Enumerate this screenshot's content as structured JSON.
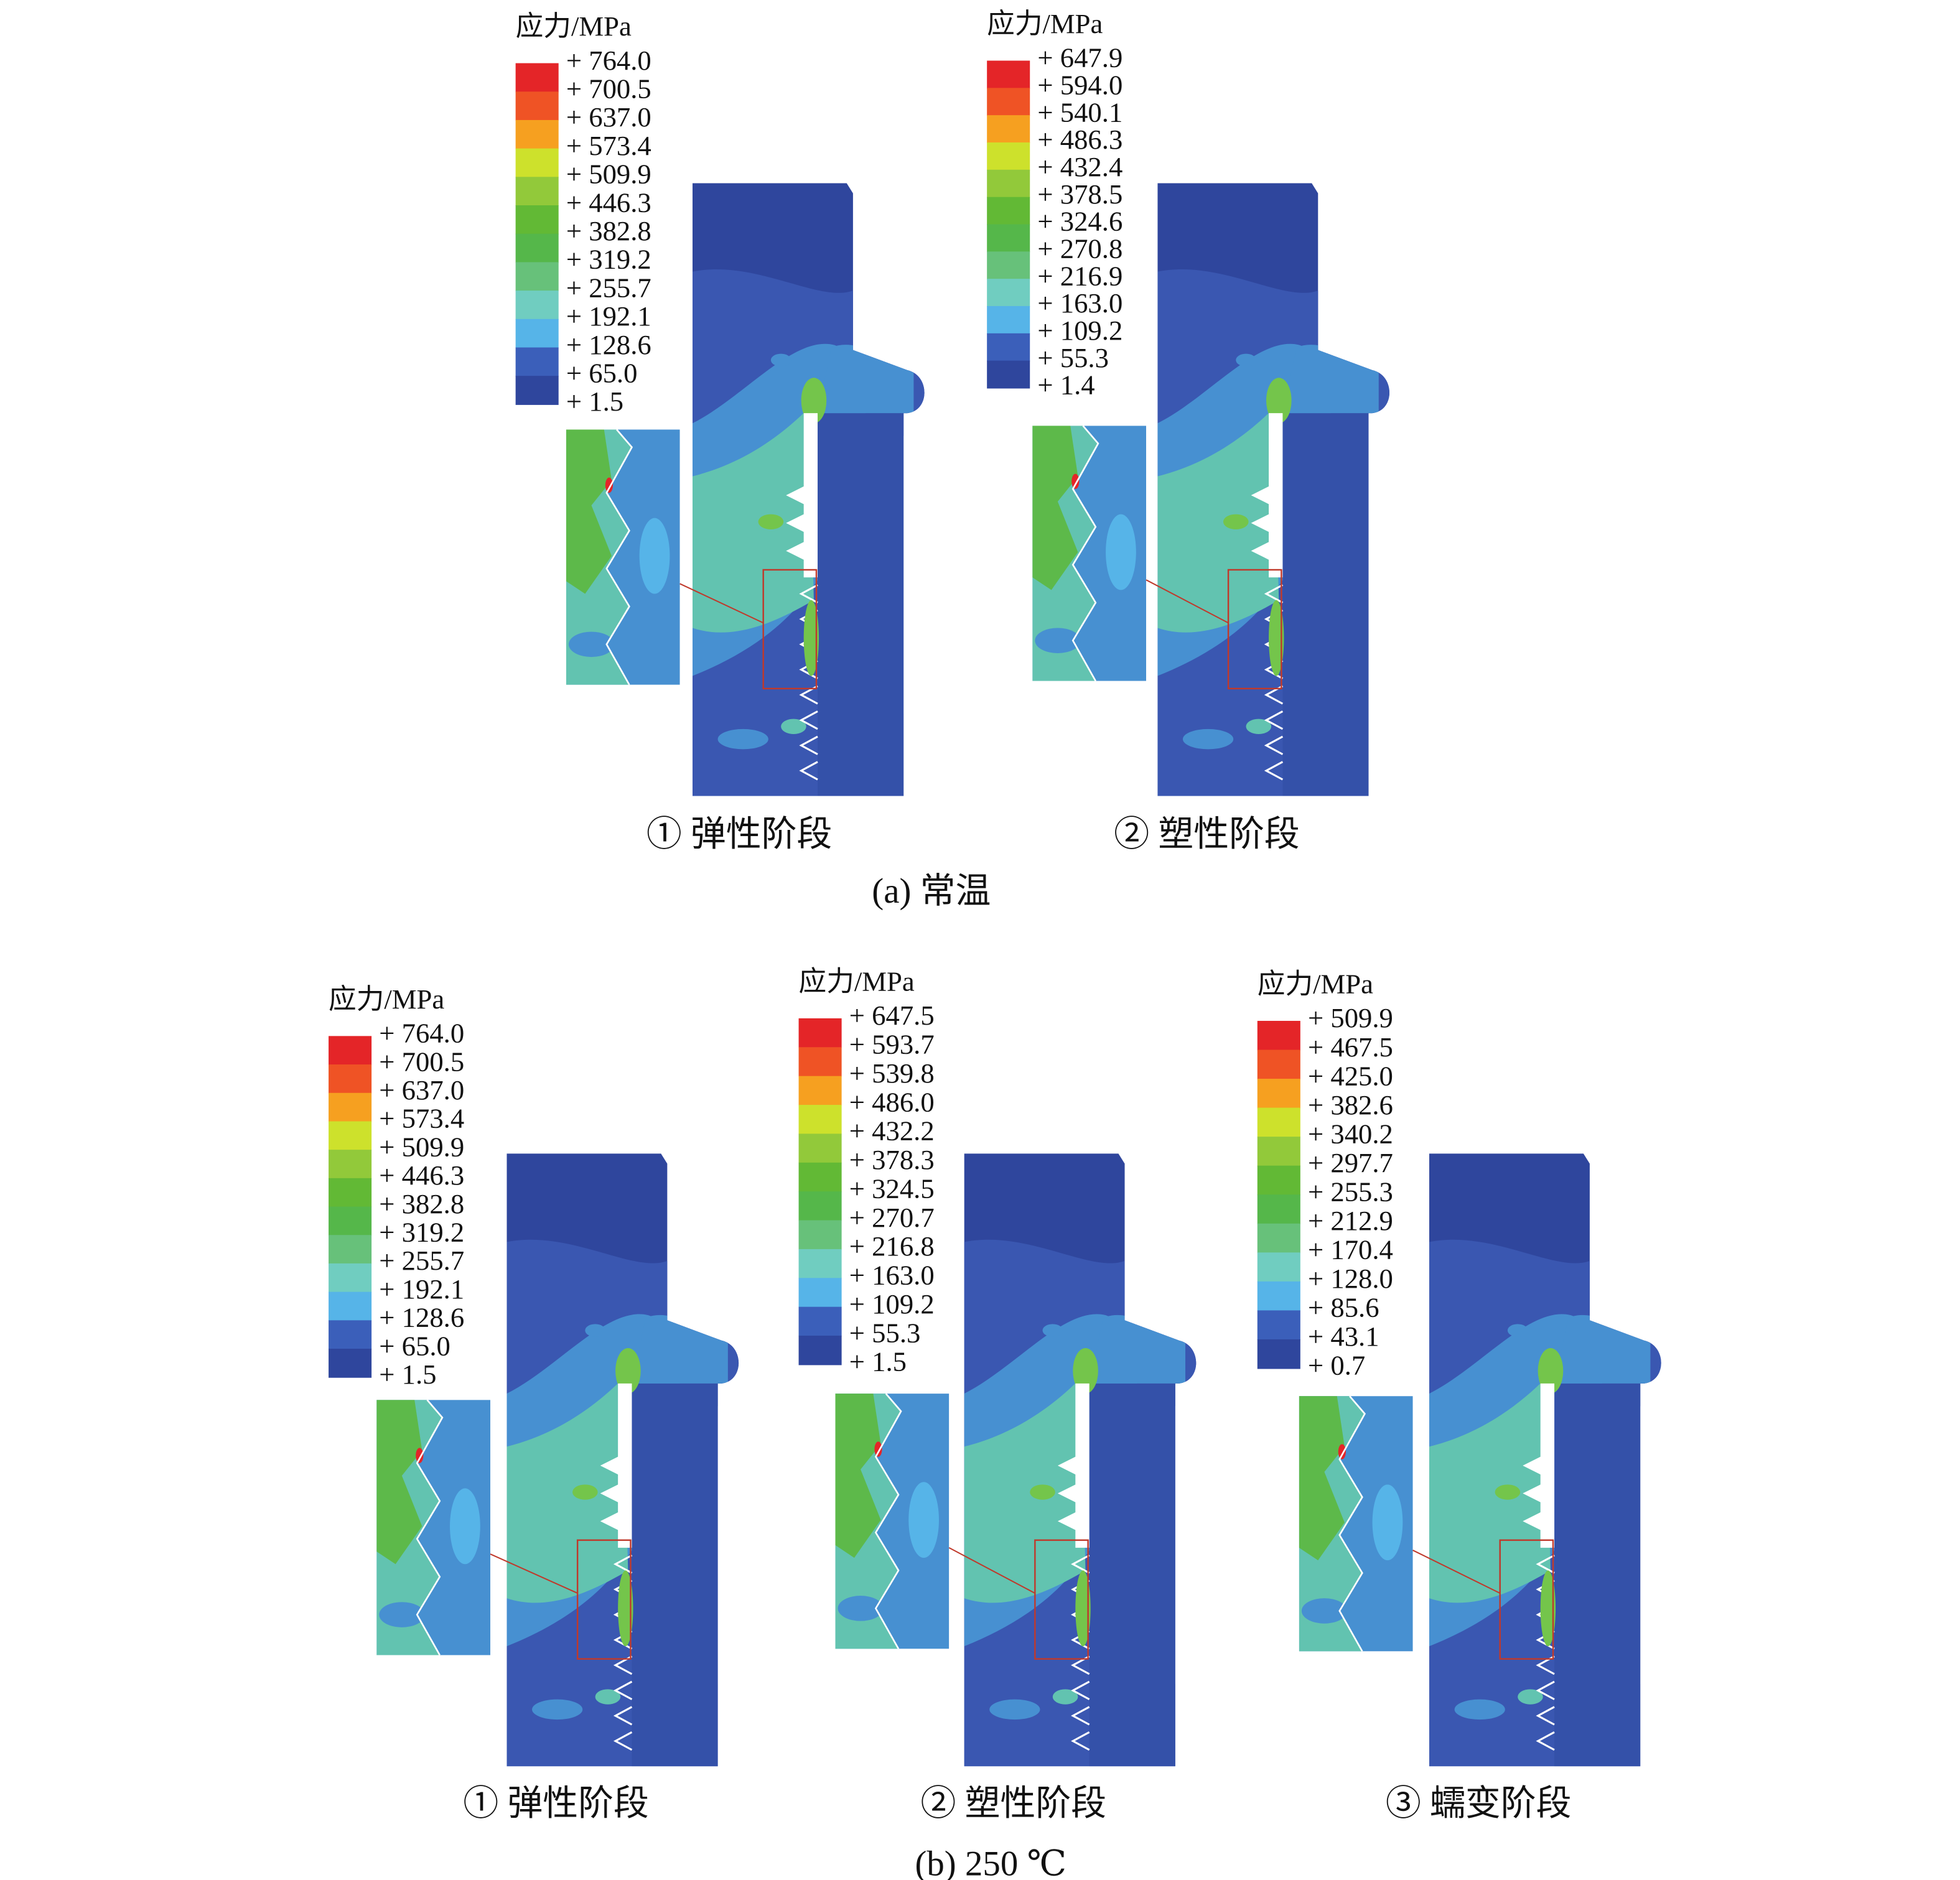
{
  "groups": [
    {
      "caption": "(a) 常温",
      "panels": [
        {
          "legend_title": "应力/MPa",
          "legend_labels": [
            "+ 764.0",
            "+ 700.5",
            "+ 637.0",
            "+ 573.4",
            "+ 509.9",
            "+ 446.3",
            "+ 382.8",
            "+ 319.2",
            "+ 255.7",
            "+ 192.1",
            "+ 128.6",
            "+ 65.0",
            "+ 1.5"
          ],
          "caption": "① 弹性阶段"
        },
        {
          "legend_title": "应力/MPa",
          "legend_labels": [
            "+ 647.9",
            "+ 594.0",
            "+ 540.1",
            "+ 486.3",
            "+ 432.4",
            "+ 378.5",
            "+ 324.6",
            "+ 270.8",
            "+ 216.9",
            "+ 163.0",
            "+ 109.2",
            "+ 55.3",
            "+ 1.4"
          ],
          "caption": "② 塑性阶段"
        }
      ]
    },
    {
      "caption": "(b) 250 ℃",
      "panels": [
        {
          "legend_title": "应力/MPa",
          "legend_labels": [
            "+ 764.0",
            "+ 700.5",
            "+ 637.0",
            "+ 573.4",
            "+ 509.9",
            "+ 446.3",
            "+ 382.8",
            "+ 319.2",
            "+ 255.7",
            "+ 192.1",
            "+ 128.6",
            "+ 65.0",
            "+ 1.5"
          ],
          "caption": "① 弹性阶段"
        },
        {
          "legend_title": "应力/MPa",
          "legend_labels": [
            "+ 647.5",
            "+ 593.7",
            "+ 539.8",
            "+ 486.0",
            "+ 432.2",
            "+ 378.3",
            "+ 324.5",
            "+ 270.7",
            "+ 216.8",
            "+ 163.0",
            "+ 109.2",
            "+ 55.3",
            "+ 1.5"
          ],
          "caption": "② 塑性阶段"
        },
        {
          "legend_title": "应力/MPa",
          "legend_labels": [
            "+ 509.9",
            "+ 467.5",
            "+ 425.0",
            "+ 382.6",
            "+ 340.2",
            "+ 297.7",
            "+ 255.3",
            "+ 212.9",
            "+ 170.4",
            "+ 128.0",
            "+ 85.6",
            "+ 43.1",
            "+ 0.7"
          ],
          "caption": "③ 蠕变阶段"
        }
      ]
    }
  ]
}
